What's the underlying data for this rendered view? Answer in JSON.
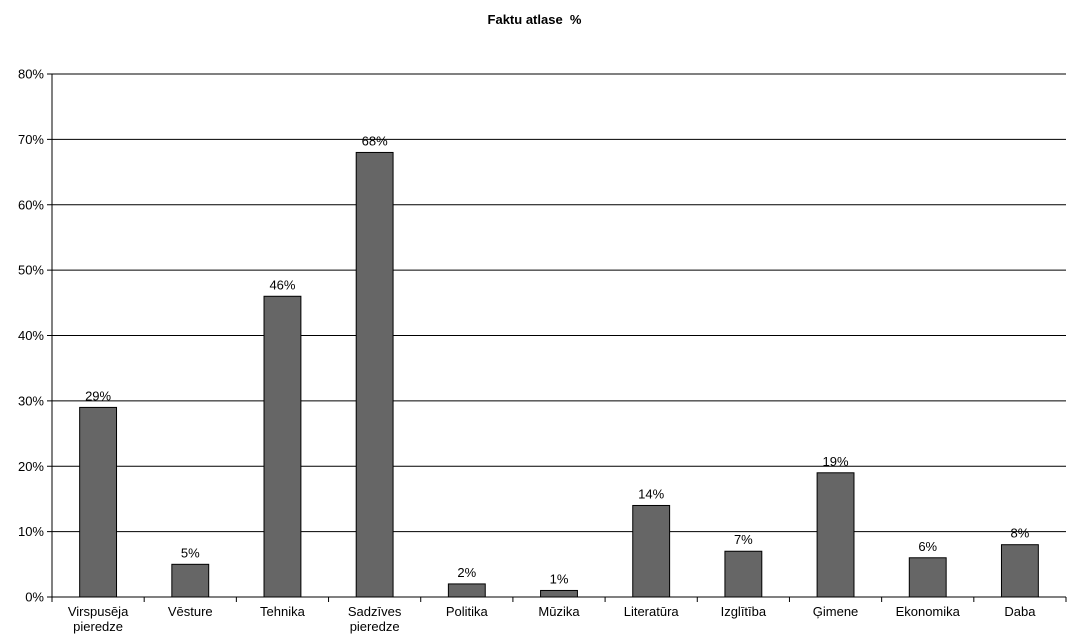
{
  "chart_data": {
    "type": "bar",
    "title": "Faktu atlase  %",
    "xlabel": "",
    "ylabel": "",
    "categories": [
      [
        "Virspusēja",
        "pieredze"
      ],
      [
        "Vēsture"
      ],
      [
        "Tehnika"
      ],
      [
        "Sadzīves",
        "pieredze"
      ],
      [
        "Politika"
      ],
      [
        "Mūzika"
      ],
      [
        "Literatūra"
      ],
      [
        "Izglītība"
      ],
      [
        "Ģimene"
      ],
      [
        "Ekonomika"
      ],
      [
        "Daba"
      ]
    ],
    "values": [
      29,
      5,
      46,
      68,
      2,
      1,
      14,
      7,
      19,
      6,
      8
    ],
    "data_labels": [
      "29%",
      "5%",
      "46%",
      "68%",
      "2%",
      "1%",
      "14%",
      "7%",
      "19%",
      "6%",
      "8%"
    ],
    "ylim": [
      0,
      80
    ],
    "yticks": [
      0,
      10,
      20,
      30,
      40,
      50,
      60,
      70,
      80
    ],
    "ytick_labels": [
      "0%",
      "10%",
      "20%",
      "30%",
      "40%",
      "50%",
      "60%",
      "70%",
      "80%"
    ],
    "grid": true,
    "bar_color": "#666666",
    "legend": "none"
  }
}
